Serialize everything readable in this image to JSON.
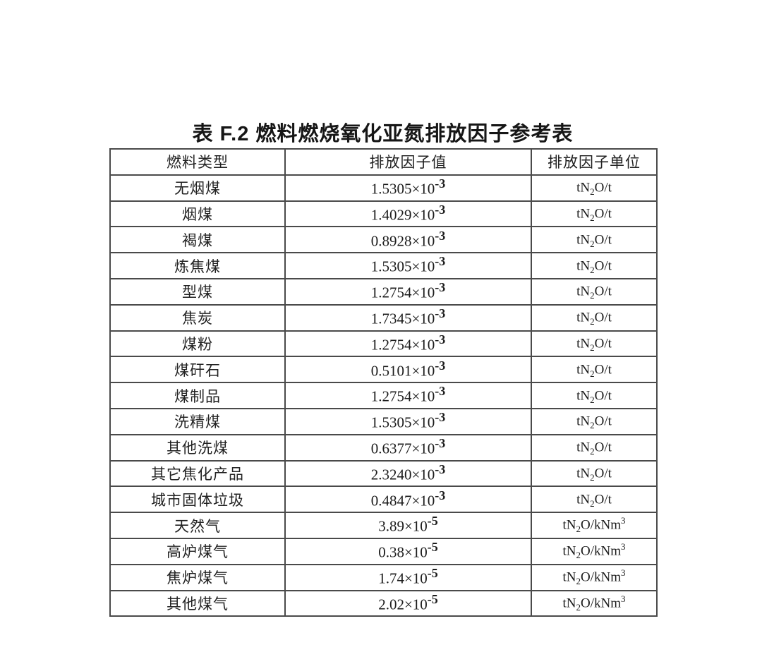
{
  "page": {
    "title": "表 F.2 燃料燃烧氧化亚氮排放因子参考表"
  },
  "colors": {
    "background": "#ffffff",
    "text": "#1c1c1c",
    "border": "#4a4a4a"
  },
  "table": {
    "headers": [
      "燃料类型",
      "排放因子值",
      "排放因子单位"
    ],
    "times_base": "×10",
    "units": {
      "per_t": {
        "pre": "tN",
        "sub": "2",
        "mid": "O/t",
        "sup": ""
      },
      "per_kNm3": {
        "pre": "tN",
        "sub": "2",
        "mid": "O/kNm",
        "sup": "3"
      }
    },
    "rows": [
      {
        "fuel": "无烟煤",
        "mantissa": "1.5305",
        "exponent": "-3",
        "unit": "per_t"
      },
      {
        "fuel": "烟煤",
        "mantissa": "1.4029",
        "exponent": "-3",
        "unit": "per_t"
      },
      {
        "fuel": "褐煤",
        "mantissa": "0.8928",
        "exponent": "-3",
        "unit": "per_t"
      },
      {
        "fuel": "炼焦煤",
        "mantissa": "1.5305",
        "exponent": "-3",
        "unit": "per_t"
      },
      {
        "fuel": "型煤",
        "mantissa": "1.2754",
        "exponent": "-3",
        "unit": "per_t"
      },
      {
        "fuel": "焦炭",
        "mantissa": "1.7345",
        "exponent": "-3",
        "unit": "per_t"
      },
      {
        "fuel": "煤粉",
        "mantissa": "1.2754",
        "exponent": "-3",
        "unit": "per_t"
      },
      {
        "fuel": "煤矸石",
        "mantissa": "0.5101",
        "exponent": "-3",
        "unit": "per_t"
      },
      {
        "fuel": "煤制品",
        "mantissa": "1.2754",
        "exponent": "-3",
        "unit": "per_t"
      },
      {
        "fuel": "洗精煤",
        "mantissa": "1.5305",
        "exponent": "-3",
        "unit": "per_t"
      },
      {
        "fuel": "其他洗煤",
        "mantissa": "0.6377",
        "exponent": "-3",
        "unit": "per_t"
      },
      {
        "fuel": "其它焦化产品",
        "mantissa": "2.3240",
        "exponent": "-3",
        "unit": "per_t"
      },
      {
        "fuel": "城市固体垃圾",
        "mantissa": "0.4847",
        "exponent": "-3",
        "unit": "per_t"
      },
      {
        "fuel": "天然气",
        "mantissa": "3.89",
        "exponent": "-5",
        "unit": "per_kNm3"
      },
      {
        "fuel": "高炉煤气",
        "mantissa": "0.38",
        "exponent": "-5",
        "unit": "per_kNm3"
      },
      {
        "fuel": "焦炉煤气",
        "mantissa": "1.74",
        "exponent": "-5",
        "unit": "per_kNm3"
      },
      {
        "fuel": "其他煤气",
        "mantissa": "2.02",
        "exponent": "-5",
        "unit": "per_kNm3"
      }
    ]
  }
}
